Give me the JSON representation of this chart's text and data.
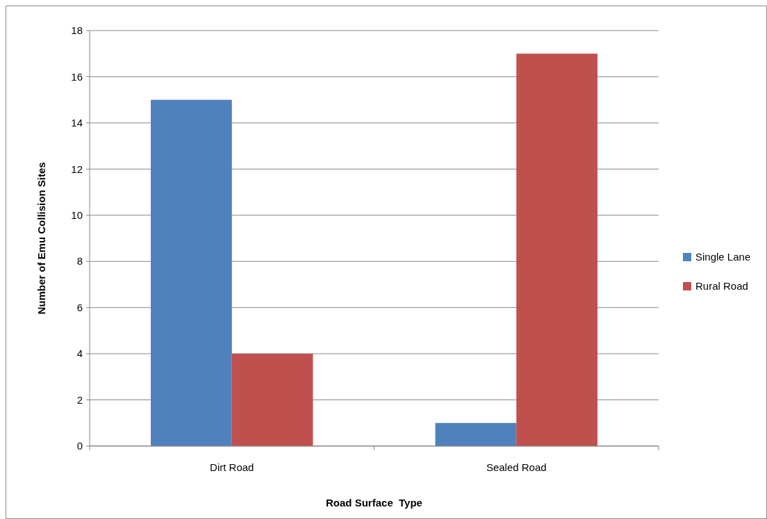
{
  "chart_data": {
    "type": "bar",
    "xlabel": "Road Surface  Type",
    "ylabel": "Number of Emu Collision Sites",
    "categories": [
      "Dirt Road",
      "Sealed Road"
    ],
    "series": [
      {
        "name": "Single Lane",
        "color": "#4f81bd",
        "values": [
          15,
          1
        ]
      },
      {
        "name": "Rural Road",
        "color": "#c0504d",
        "values": [
          4,
          17
        ]
      }
    ],
    "ylim": [
      0,
      18
    ],
    "yticks": [
      0,
      2,
      4,
      6,
      8,
      10,
      12,
      14,
      16,
      18
    ],
    "grid": "y",
    "legend": "right"
  }
}
